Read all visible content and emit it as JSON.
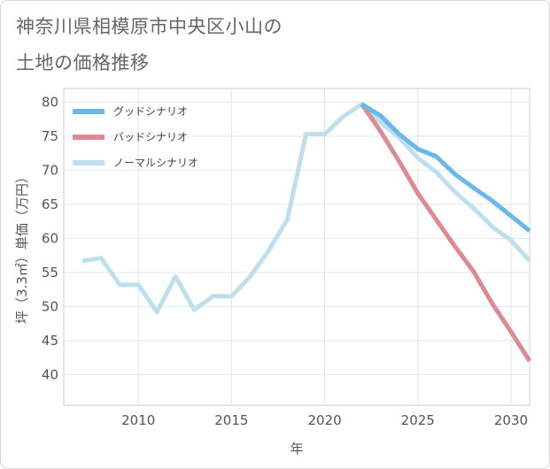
{
  "title": {
    "line1": "神奈川県相模原市中央区小山の",
    "line2": "土地の価格推移"
  },
  "chart_data": {
    "type": "line",
    "xlabel": "年",
    "ylabel": "坪（3.3㎡）単価（万円）",
    "xlim": [
      2006,
      2031
    ],
    "ylim": [
      35.5,
      82
    ],
    "xticks": [
      2010,
      2015,
      2020,
      2025,
      2030
    ],
    "yticks": [
      40,
      45,
      50,
      55,
      60,
      65,
      70,
      75,
      80
    ],
    "grid": true,
    "legend_position": "top-left",
    "series": [
      {
        "name": "グッドシナリオ",
        "color": "#6cb7ea",
        "x": [
          2022,
          2023,
          2024,
          2025,
          2026,
          2027,
          2028,
          2029,
          2030,
          2031
        ],
        "y": [
          79.7,
          78.0,
          75.3,
          73.1,
          72.0,
          69.4,
          67.4,
          65.5,
          63.3,
          61.1
        ]
      },
      {
        "name": "バッドシナリオ",
        "color": "#dd8a93",
        "x": [
          2022,
          2023,
          2024,
          2025,
          2026,
          2027,
          2028,
          2029,
          2030,
          2031
        ],
        "y": [
          79.7,
          75.7,
          71.3,
          66.6,
          62.7,
          58.8,
          55.1,
          50.4,
          46.3,
          42.0
        ]
      },
      {
        "name": "ノーマルシナリオ",
        "color": "#bde0ec",
        "x": [
          2007,
          2008,
          2009,
          2010,
          2011,
          2012,
          2013,
          2014,
          2015,
          2016,
          2017,
          2018,
          2019,
          2020,
          2021,
          2022,
          2023,
          2024,
          2025,
          2026,
          2027,
          2028,
          2029,
          2030,
          2031
        ],
        "y": [
          56.7,
          57.1,
          53.2,
          53.2,
          49.2,
          54.4,
          49.5,
          51.5,
          51.5,
          54.4,
          58.2,
          62.8,
          75.3,
          75.3,
          77.9,
          79.7,
          77.0,
          74.8,
          71.8,
          69.7,
          66.8,
          64.4,
          61.7,
          59.7,
          56.7
        ]
      }
    ]
  }
}
